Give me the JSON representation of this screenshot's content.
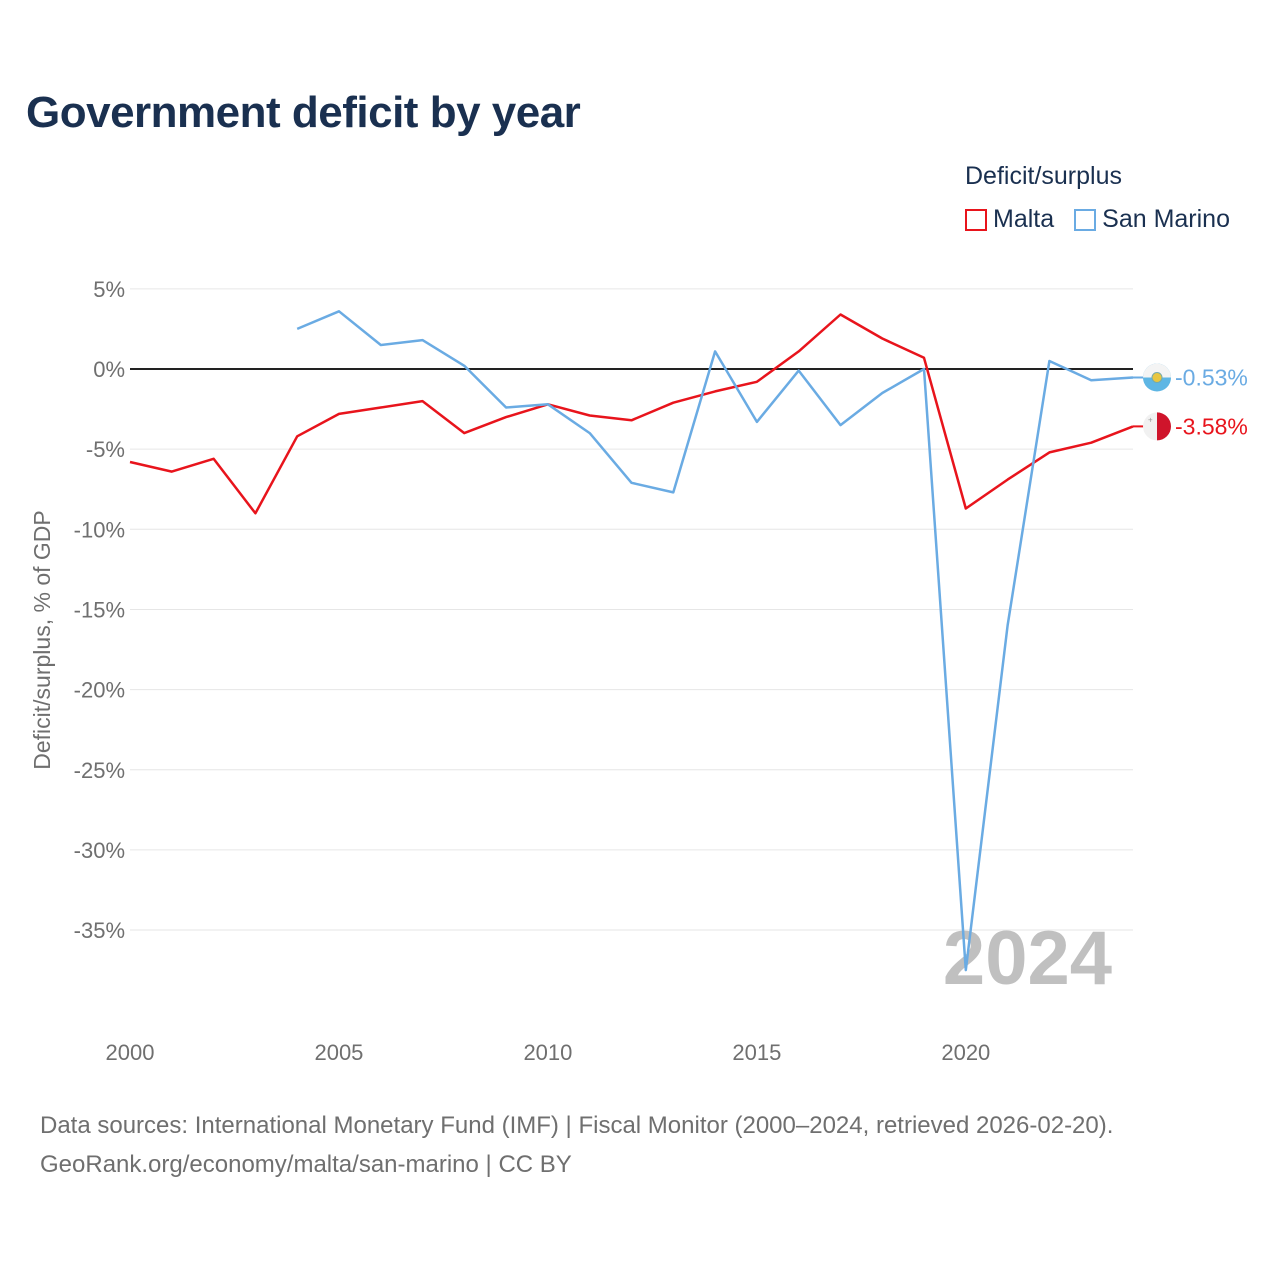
{
  "chart_data": {
    "type": "line",
    "title": "Government deficit by year",
    "xlabel": "",
    "ylabel": "Deficit/surplus, % of GDP",
    "xlim": [
      2000,
      2024
    ],
    "ylim": [
      -40,
      5
    ],
    "xticks": [
      2000,
      2005,
      2010,
      2015,
      2020
    ],
    "yticks": [
      5,
      0,
      -5,
      -10,
      -15,
      -20,
      -25,
      -30,
      -35
    ],
    "ytick_labels": [
      "5%",
      "0%",
      "-5%",
      "-10%",
      "-15%",
      "-20%",
      "-25%",
      "-30%",
      "-35%"
    ],
    "legend_title": "Deficit/surplus",
    "legend_position": "top-right",
    "year_watermark": "2024",
    "series": [
      {
        "name": "Malta",
        "color": "#e8141c",
        "end_label": "-3.58%",
        "flag_icon": "malta-flag-icon",
        "x": [
          2000,
          2001,
          2002,
          2003,
          2004,
          2005,
          2006,
          2007,
          2008,
          2009,
          2010,
          2011,
          2012,
          2013,
          2014,
          2015,
          2016,
          2017,
          2018,
          2019,
          2020,
          2021,
          2022,
          2023,
          2024
        ],
        "values": [
          -5.8,
          -6.4,
          -5.6,
          -9.0,
          -4.2,
          -2.8,
          -2.4,
          -2.0,
          -4.0,
          -3.0,
          -2.2,
          -2.9,
          -3.2,
          -2.1,
          -1.4,
          -0.8,
          1.1,
          3.4,
          1.9,
          0.7,
          -8.7,
          -6.9,
          -5.2,
          -4.6,
          -3.58
        ]
      },
      {
        "name": "San Marino",
        "color": "#6aabe3",
        "end_label": "-0.53%",
        "flag_icon": "san-marino-flag-icon",
        "x": [
          2004,
          2005,
          2006,
          2007,
          2008,
          2009,
          2010,
          2011,
          2012,
          2013,
          2014,
          2015,
          2016,
          2017,
          2018,
          2019,
          2020,
          2021,
          2022,
          2023,
          2024
        ],
        "values": [
          2.5,
          3.6,
          1.5,
          1.8,
          0.2,
          -2.4,
          -2.2,
          -4.0,
          -7.1,
          -7.7,
          1.1,
          -3.3,
          -0.1,
          -3.5,
          -1.5,
          0.0,
          -37.5,
          -16.0,
          0.5,
          -0.7,
          -0.53
        ]
      }
    ]
  },
  "footer": {
    "line1": "Data sources: International Monetary Fund (IMF) | Fiscal Monitor (2000–2024, retrieved 2026-02-20).",
    "line2": "GeoRank.org/economy/malta/san-marino | CC BY"
  },
  "colors": {
    "title": "#1a3050",
    "axis_text": "#6f6f6f",
    "grid": "#e6e6e6",
    "zero_line": "#222222"
  }
}
